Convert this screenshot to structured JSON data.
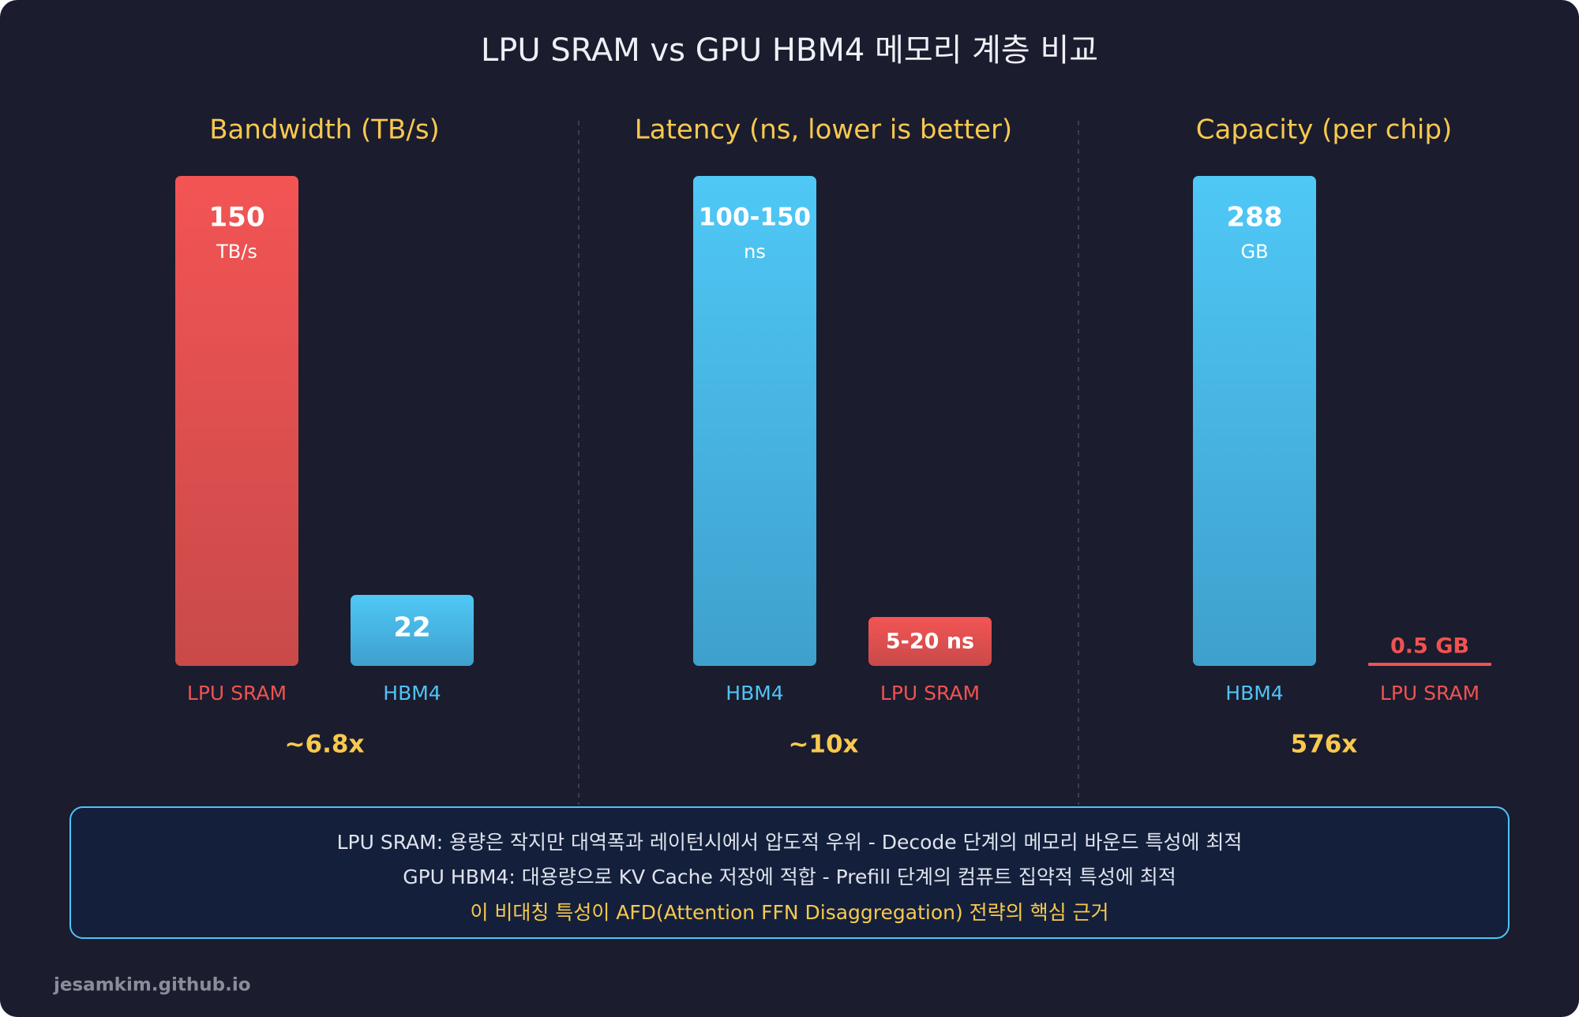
{
  "title": "LPU SRAM vs GPU HBM4 메모리 계층 비교",
  "panels": [
    {
      "title": "Bandwidth (TB/s)",
      "bars": [
        {
          "value": "150",
          "unit": "TB/s",
          "label": "LPU SRAM"
        },
        {
          "value": "22",
          "label": "HBM4"
        }
      ],
      "ratio": "~6.8x"
    },
    {
      "title": "Latency (ns, lower is better)",
      "bars": [
        {
          "value": "100-150",
          "unit": "ns",
          "label": "HBM4"
        },
        {
          "value": "5-20 ns",
          "label": "LPU SRAM"
        }
      ],
      "ratio": "~10x"
    },
    {
      "title": "Capacity (per chip)",
      "bars": [
        {
          "value": "288",
          "unit": "GB",
          "label": "HBM4"
        },
        {
          "value": "0.5 GB",
          "label": "LPU SRAM"
        }
      ],
      "ratio": "576x"
    }
  ],
  "notes": [
    "LPU SRAM: 용량은 작지만 대역폭과 레이턴시에서 압도적 우위 - Decode 단계의 메모리 바운드 특성에 최적",
    "GPU HBM4: 대용량으로 KV Cache 저장에 적합 - Prefill 단계의 컴퓨트 집약적 특성에 최적",
    "이 비대칭 특성이 AFD(Attention FFN Disaggregation) 전략의 핵심 근거"
  ],
  "footer": "jesamkim.github.io"
}
